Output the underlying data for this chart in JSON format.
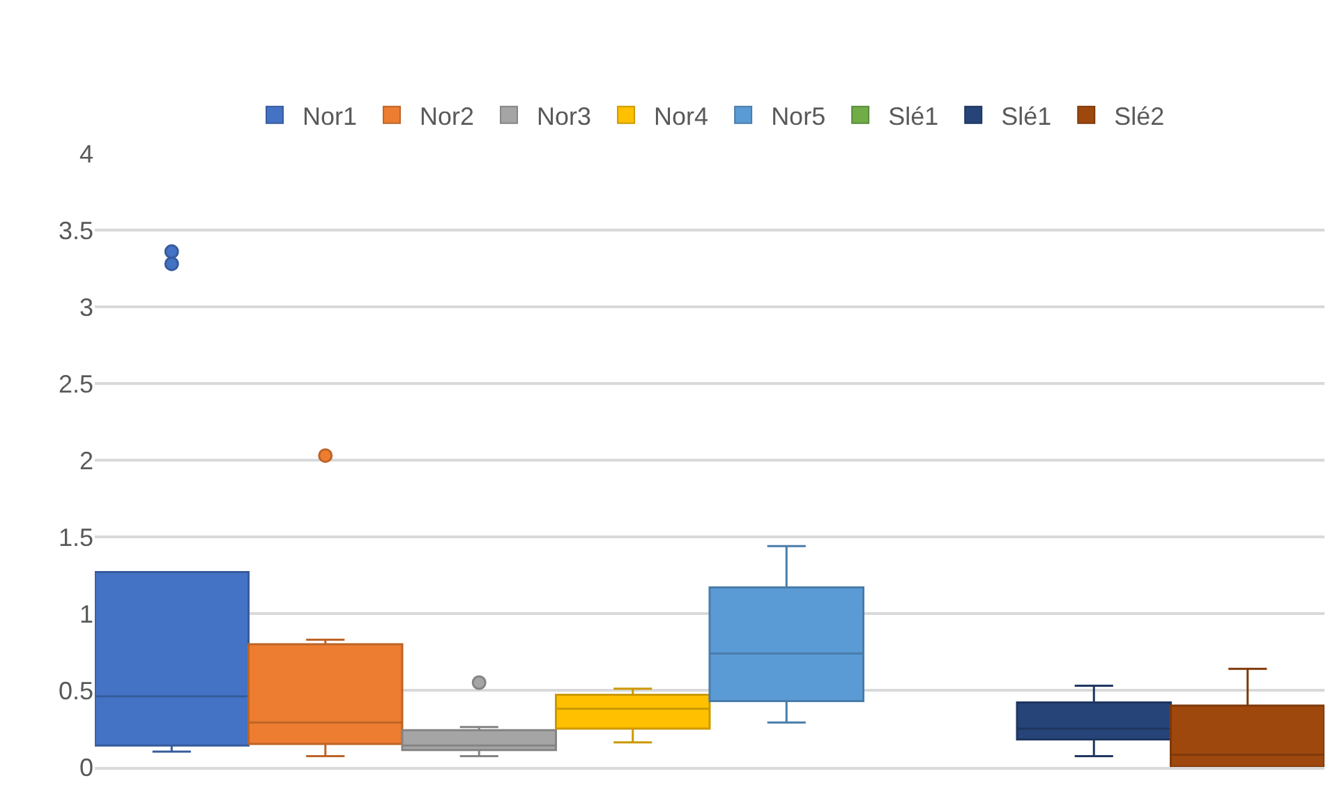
{
  "chart_data": {
    "type": "box",
    "categories": [
      null
    ],
    "ylim": [
      0,
      4
    ],
    "yticks": [
      0,
      0.5,
      1,
      1.5,
      2,
      2.5,
      3,
      3.5,
      4
    ],
    "grid": "y",
    "legend": "top",
    "series": [
      {
        "name": "Nor1",
        "color": "#4472c4",
        "boxes": [
          {
            "low": 0.1,
            "q1": 0.14,
            "median": 0.46,
            "q3": 1.27,
            "high": 1.27,
            "outliers": [
              3.28,
              3.36
            ]
          }
        ]
      },
      {
        "name": "Nor2",
        "color": "#ed7d31",
        "boxes": [
          {
            "low": 0.07,
            "q1": 0.15,
            "median": 0.29,
            "q3": 0.8,
            "high": 0.83,
            "outliers": [
              2.03
            ]
          }
        ]
      },
      {
        "name": "Nor3",
        "color": "#a5a5a5",
        "boxes": [
          {
            "low": 0.07,
            "q1": 0.11,
            "median": 0.14,
            "q3": 0.24,
            "high": 0.26,
            "outliers": [
              0.55
            ]
          }
        ]
      },
      {
        "name": "Nor4",
        "color": "#ffc000",
        "boxes": [
          {
            "low": 0.16,
            "q1": 0.25,
            "median": 0.38,
            "q3": 0.47,
            "high": 0.51
          }
        ]
      },
      {
        "name": "Nor5",
        "color": "#5b9bd5",
        "boxes": [
          {
            "low": 0.29,
            "q1": 0.43,
            "median": 0.74,
            "q3": 1.17,
            "high": 1.44
          }
        ]
      },
      {
        "name": "Slé1",
        "color": "#70ad47",
        "boxes": [
          null
        ]
      },
      {
        "name": "Slé1",
        "color": "#264478",
        "boxes": [
          {
            "low": 0.07,
            "q1": 0.18,
            "median": 0.25,
            "q3": 0.42,
            "high": 0.53
          }
        ]
      },
      {
        "name": "Slé2",
        "color": "#9e480e",
        "boxes": [
          {
            "low": 0.0,
            "q1": 0.0,
            "median": 0.08,
            "q3": 0.4,
            "high": 0.64
          }
        ]
      }
    ]
  }
}
